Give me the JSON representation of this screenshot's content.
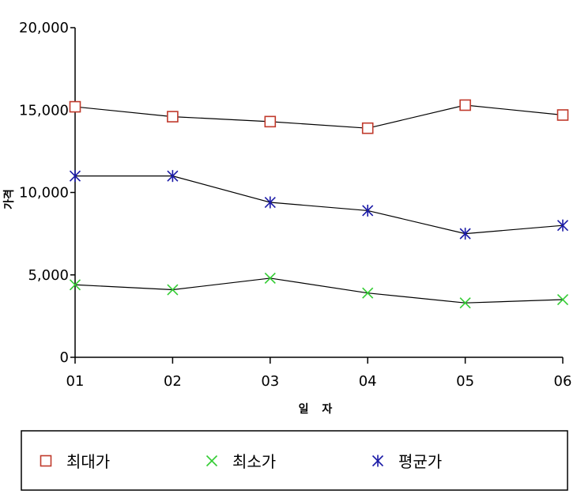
{
  "chart_data": {
    "type": "line",
    "title": "",
    "xlabel": "일 자",
    "ylabel": "가격",
    "categories": [
      "01",
      "02",
      "03",
      "04",
      "05",
      "06"
    ],
    "y_ticks": [
      "0",
      "5,000",
      "10,000",
      "15,000",
      "20,000"
    ],
    "ylim": [
      0,
      20000
    ],
    "grid": false,
    "legend_position": "bottom",
    "series": [
      {
        "name": "최대가",
        "marker": "square",
        "color": "#c0392b",
        "values": [
          15200,
          14600,
          14300,
          13900,
          15300,
          14700
        ]
      },
      {
        "name": "최소가",
        "marker": "x",
        "color": "#33cc33",
        "values": [
          4400,
          4100,
          4800,
          3900,
          3300,
          3500
        ]
      },
      {
        "name": "평균가",
        "marker": "asterisk",
        "color": "#1a1aa6",
        "values": [
          11000,
          11000,
          9400,
          8900,
          7500,
          8000
        ]
      }
    ]
  }
}
